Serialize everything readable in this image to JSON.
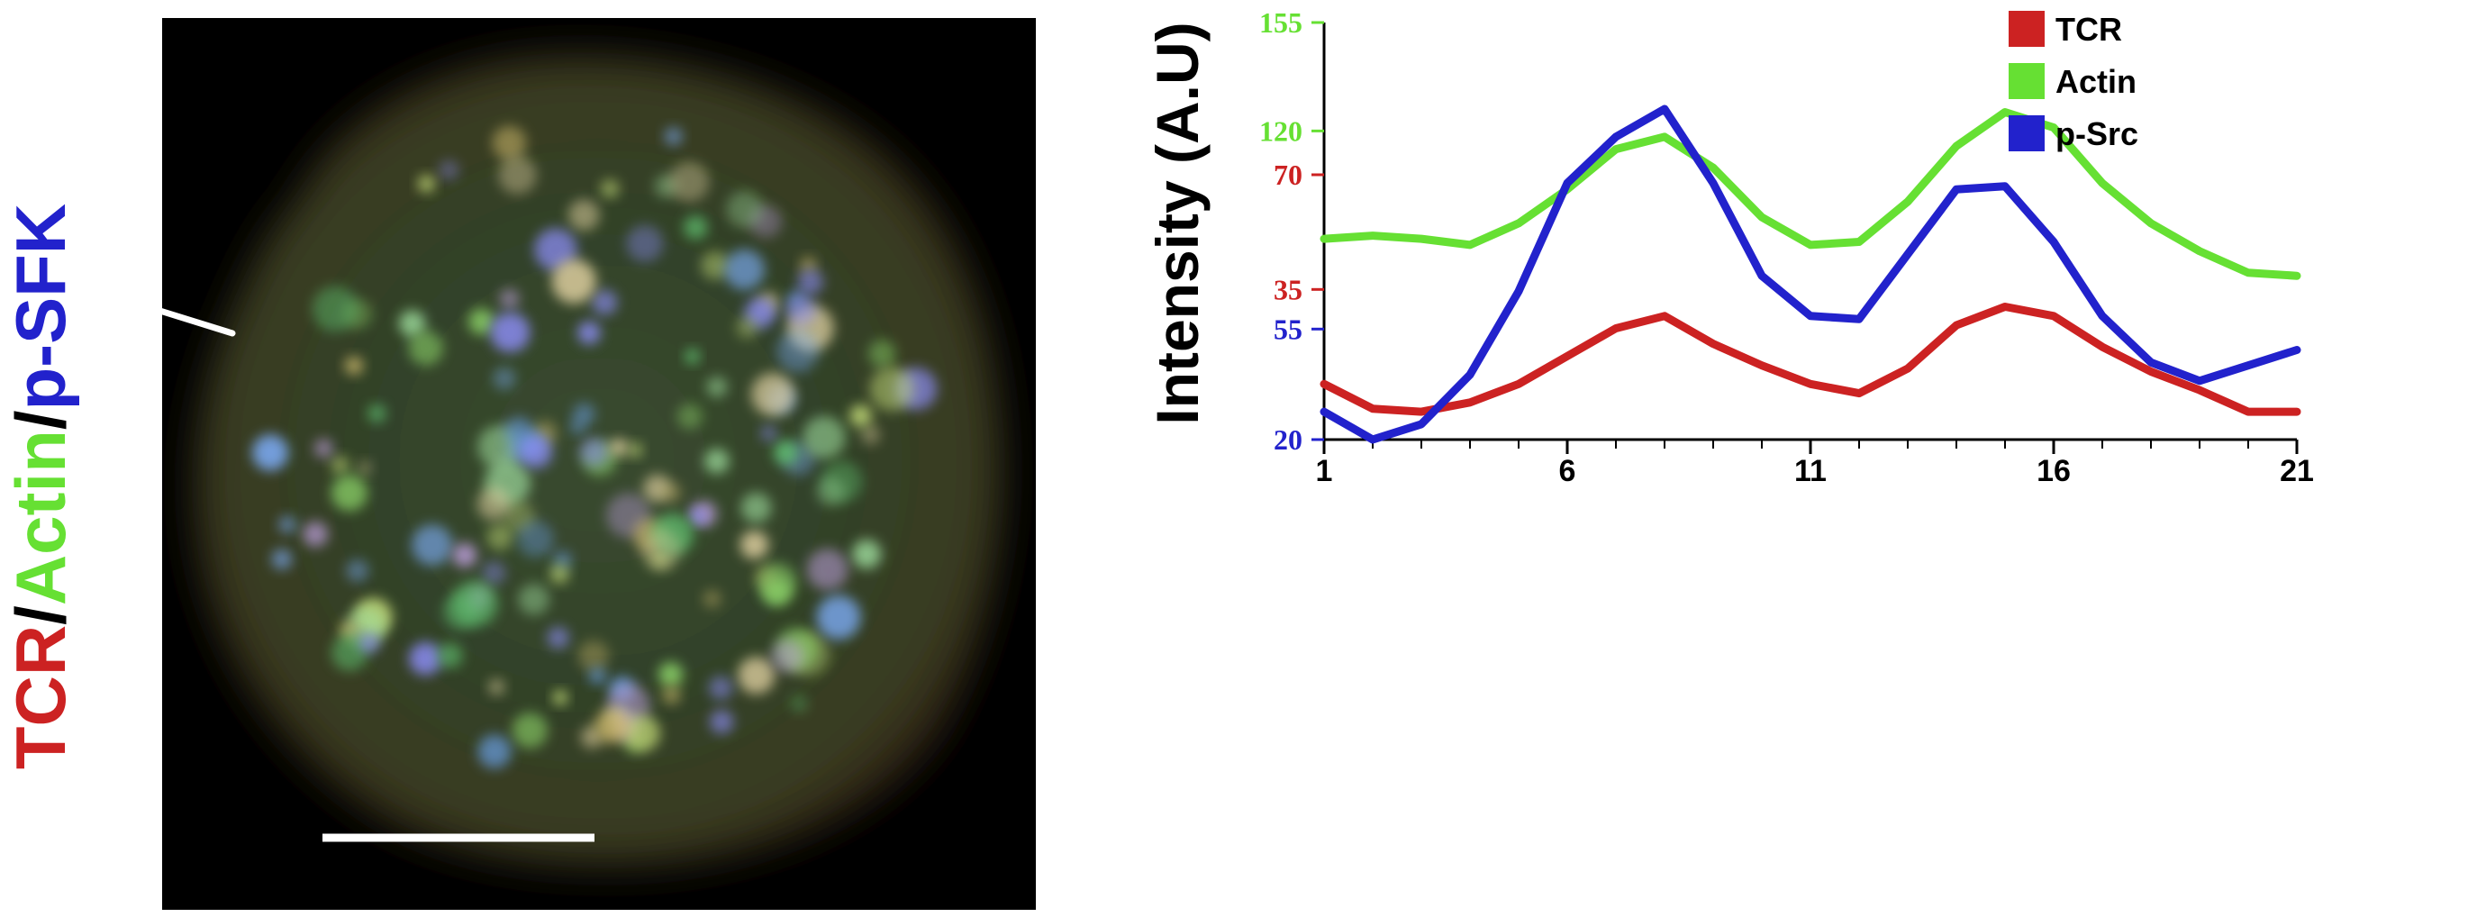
{
  "figure_title": {
    "parts": [
      {
        "text": "TCR",
        "color": "#cc2222"
      },
      {
        "text": "/",
        "color": "#000000"
      },
      {
        "text": "Actin",
        "color": "#66e033"
      },
      {
        "text": "/",
        "color": "#000000"
      },
      {
        "text": "p-SFK",
        "color": "#2222cc"
      }
    ]
  },
  "micrograph": {
    "description_icon": "fluorescence-cell-image",
    "scale_bar_color": "#ffffff",
    "line_scan_color": "#ffffff"
  },
  "chart_data": {
    "type": "line",
    "title": "",
    "xlabel": "",
    "ylabel": "Intensity (A.U)",
    "x": [
      1,
      2,
      3,
      4,
      5,
      6,
      7,
      8,
      9,
      10,
      11,
      12,
      13,
      14,
      15,
      16,
      17,
      18,
      19,
      20,
      21
    ],
    "xticks": [
      "1",
      "6",
      "11",
      "16",
      "21"
    ],
    "xlim": [
      1,
      21
    ],
    "legend_position": "top-right",
    "grid": false,
    "axes": [
      {
        "name": "TCR",
        "color": "#cc2222",
        "ticks": [
          "35",
          "70"
        ],
        "tick_values": [
          35,
          70
        ]
      },
      {
        "name": "Actin",
        "color": "#66e033",
        "ticks": [
          "120",
          "155"
        ],
        "tick_values": [
          120,
          155
        ]
      },
      {
        "name": "p-Src",
        "color": "#2222cc",
        "ticks": [
          "20",
          "55"
        ],
        "tick_values": [
          20,
          55
        ]
      }
    ],
    "series": [
      {
        "name": "TCR",
        "color": "#cc2222",
        "values": [
          38,
          30,
          29,
          32,
          38,
          47,
          56,
          60,
          51,
          44,
          38,
          35,
          43,
          57,
          63,
          60,
          50,
          42,
          36,
          29,
          29
        ]
      },
      {
        "name": "Actin",
        "color": "#66e033",
        "values": [
          85,
          86,
          85,
          83,
          90,
          101,
          114,
          118,
          108,
          92,
          83,
          84,
          97,
          115,
          126,
          121,
          103,
          90,
          81,
          74,
          73
        ]
      },
      {
        "name": "p-Src",
        "color": "#2222cc",
        "values": [
          29,
          20,
          25,
          41,
          68,
          103,
          118,
          127,
          103,
          73,
          60,
          59,
          80,
          101,
          102,
          84,
          60,
          45,
          39,
          44,
          49
        ]
      }
    ]
  }
}
